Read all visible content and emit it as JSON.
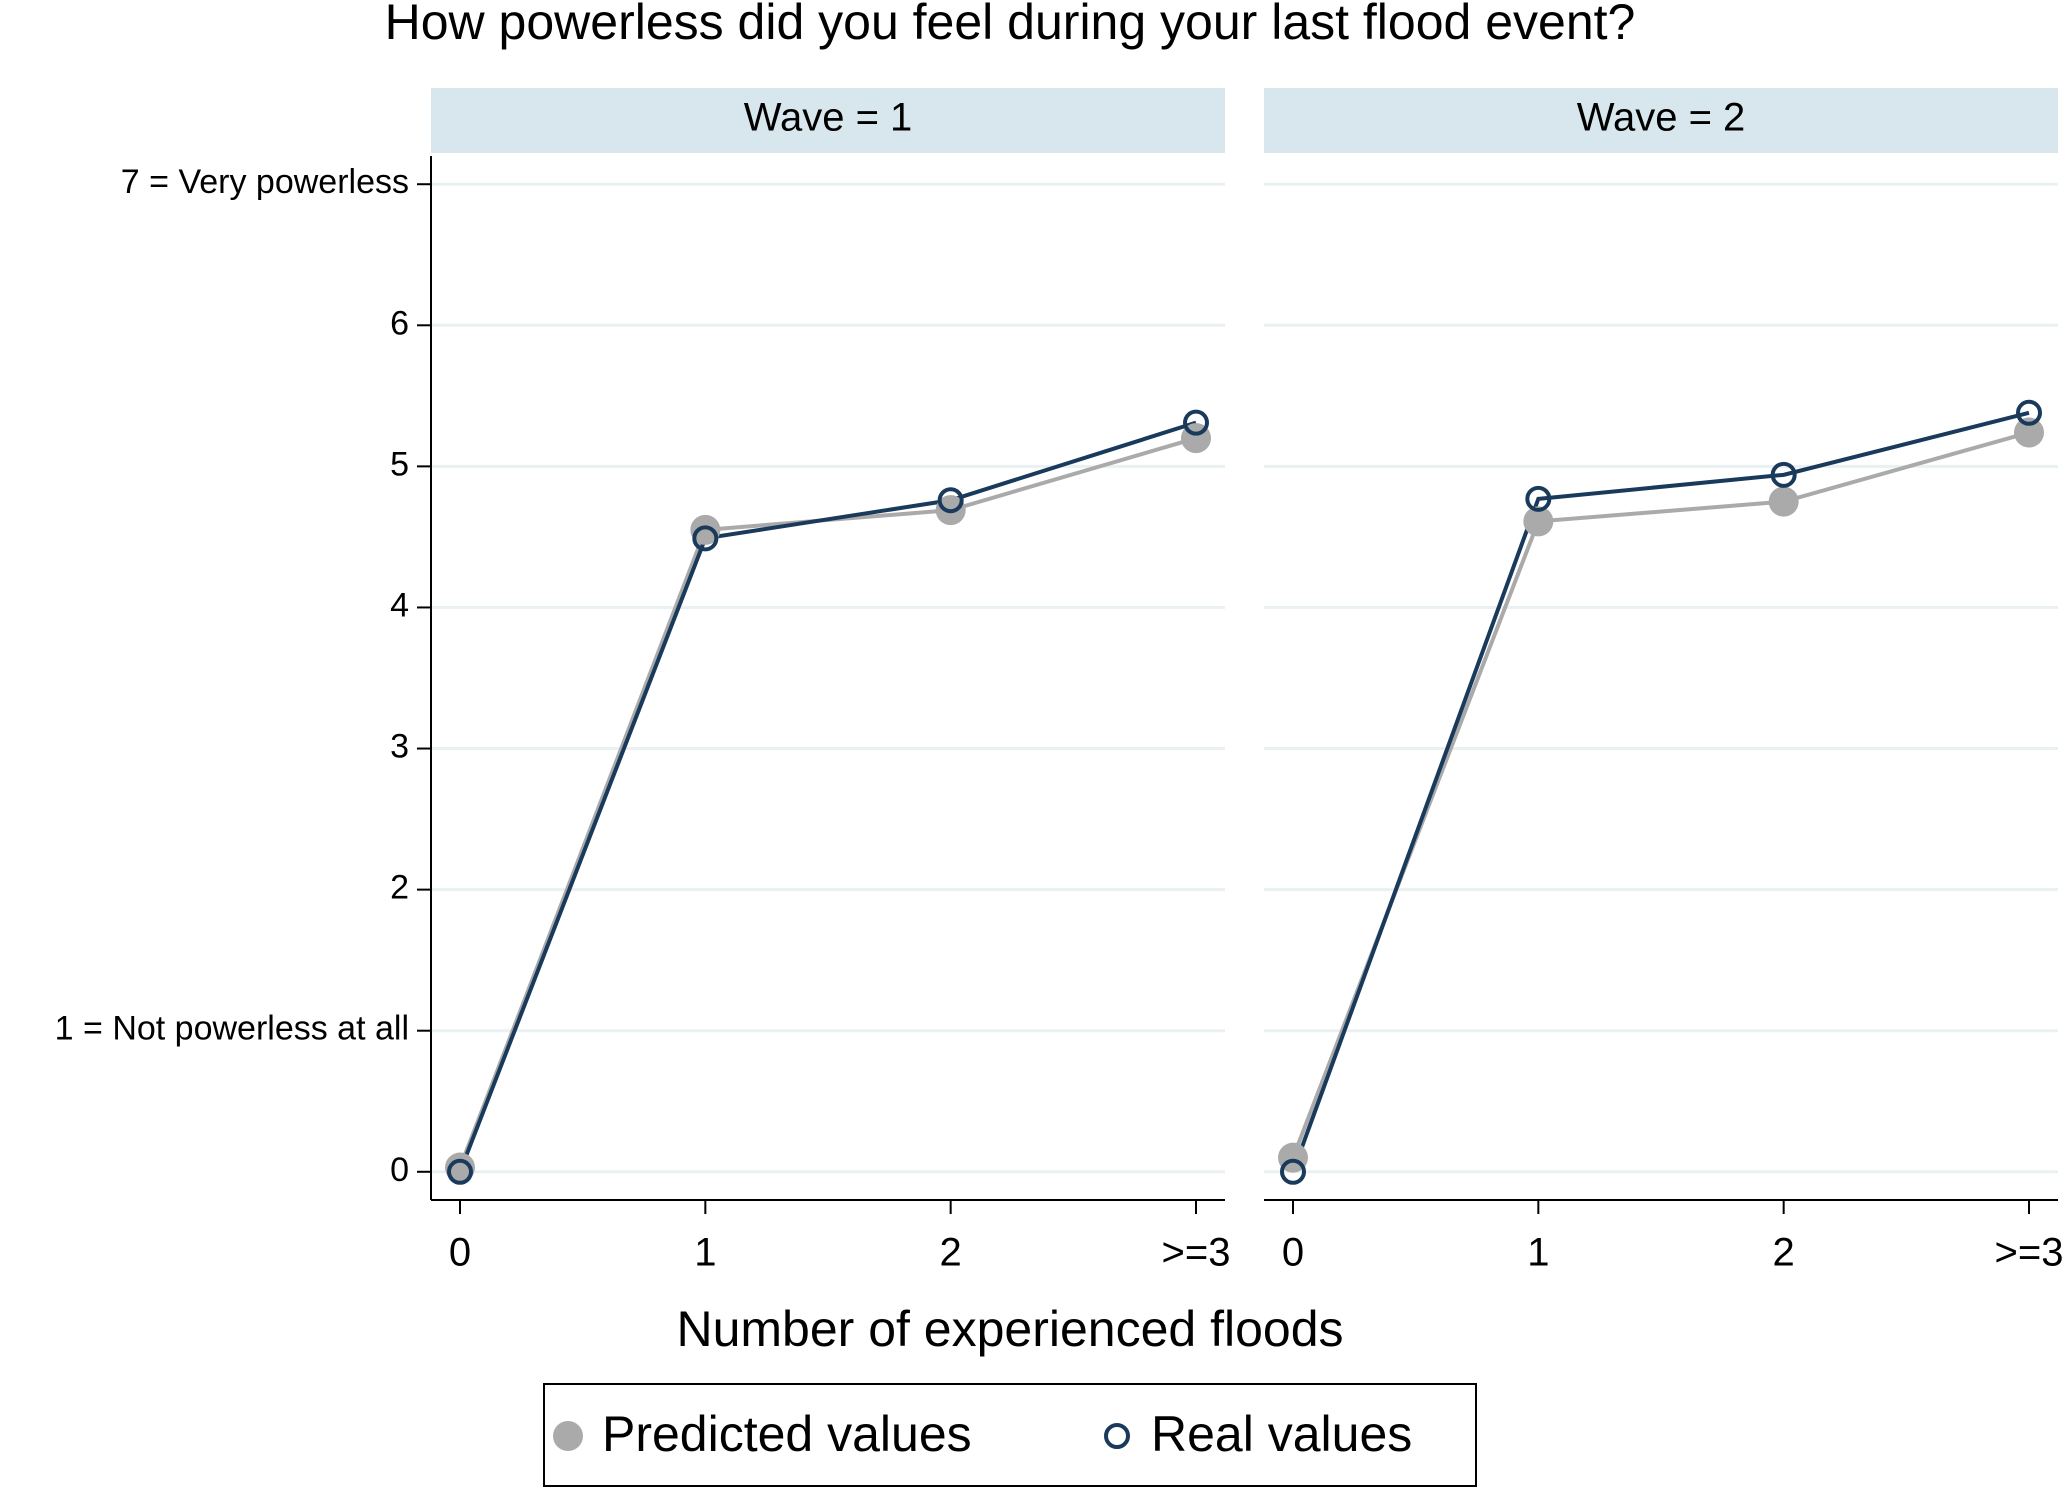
{
  "title": "How powerless did you feel during your last flood event?",
  "xlabel": "Number of experienced floods",
  "chart_data": [
    {
      "type": "line",
      "title": "Wave = 1",
      "categories": [
        "0",
        "1",
        "2",
        ">=3"
      ],
      "series": [
        {
          "name": "Predicted values",
          "color": "#aaaaaa",
          "marker": "filled",
          "values": [
            0.03,
            4.55,
            4.69,
            5.2
          ]
        },
        {
          "name": "Real values",
          "color": "#1a3a5c",
          "marker": "hollow",
          "values": [
            0,
            4.49,
            4.76,
            5.31
          ]
        }
      ],
      "ylim": [
        -0.2,
        7.2
      ],
      "yticks": [
        0,
        {
          "value": 1,
          "label": "1 = Not powerless at all"
        },
        2,
        3,
        4,
        5,
        6,
        {
          "value": 7,
          "label": "7 = Very powerless"
        }
      ],
      "grid": true
    },
    {
      "type": "line",
      "title": "Wave = 2",
      "categories": [
        "0",
        "1",
        "2",
        ">=3"
      ],
      "series": [
        {
          "name": "Predicted values",
          "color": "#aaaaaa",
          "marker": "filled",
          "values": [
            0.1,
            4.61,
            4.75,
            5.24
          ]
        },
        {
          "name": "Real values",
          "color": "#1a3a5c",
          "marker": "hollow",
          "values": [
            0,
            4.77,
            4.94,
            5.38
          ]
        }
      ],
      "ylim": [
        -0.2,
        7.2
      ],
      "yticks": [
        0,
        1,
        2,
        3,
        4,
        5,
        6,
        7
      ],
      "grid": true
    }
  ]
}
